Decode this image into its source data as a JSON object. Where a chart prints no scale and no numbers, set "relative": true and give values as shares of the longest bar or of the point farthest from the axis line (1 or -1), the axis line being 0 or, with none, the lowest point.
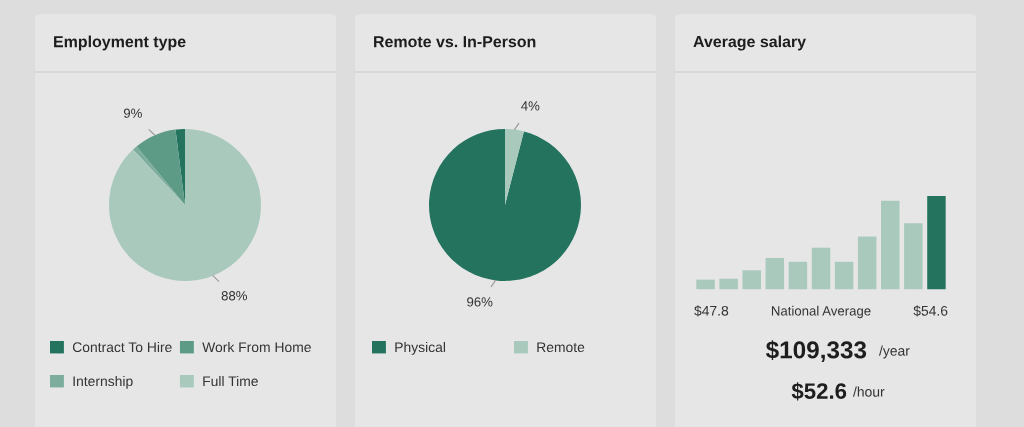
{
  "chart_data": [
    {
      "type": "pie",
      "title": "Employment type",
      "categories": [
        "Contract To Hire",
        "Work From Home",
        "Internship",
        "Full Time"
      ],
      "values": [
        2,
        9,
        1,
        88
      ],
      "colors": [
        "#23735e",
        "#5d9b87",
        "#7dae9d",
        "#a9c9bd"
      ],
      "value_labels": [
        null,
        "9%",
        null,
        "88%"
      ],
      "legend": "bottom"
    },
    {
      "type": "pie",
      "title": "Remote vs. In-Person",
      "categories": [
        "Physical",
        "Remote"
      ],
      "values": [
        96,
        4
      ],
      "colors": [
        "#23735e",
        "#a9c9bd"
      ],
      "value_labels": [
        "96%",
        "4%"
      ],
      "legend": "bottom"
    },
    {
      "type": "bar",
      "title": "Average salary",
      "categories": [
        null,
        null,
        null,
        null,
        null,
        null,
        null,
        null,
        null,
        null,
        null
      ],
      "values": [
        0.11,
        0.12,
        0.21,
        0.34,
        0.3,
        0.45,
        0.3,
        0.57,
        0.95,
        0.71,
        1
      ],
      "colors": [
        "#a9c9bd",
        "#a9c9bd",
        "#a9c9bd",
        "#a9c9bd",
        "#a9c9bd",
        "#a9c9bd",
        "#a9c9bd",
        "#a9c9bd",
        "#a9c9bd",
        "#a9c9bd",
        "#23735e"
      ],
      "relative": true,
      "xlabel": "National Average",
      "annotations": [
        "$47.8",
        "$54.6",
        "$109,333",
        "/year",
        "$52.6",
        "/hour"
      ]
    }
  ]
}
